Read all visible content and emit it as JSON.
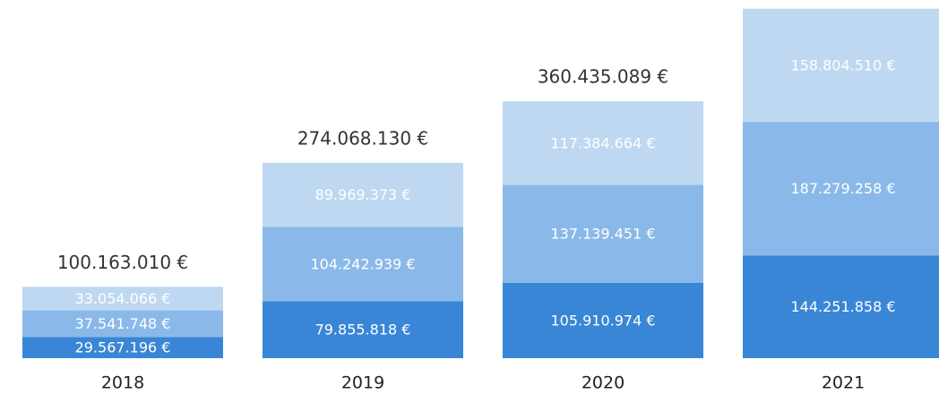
{
  "chart_data": {
    "type": "stacked_bar",
    "categories": [
      "2018",
      "2019",
      "2020",
      "2021"
    ],
    "series": [
      {
        "color": "#3a86d6",
        "values": [
          29567196,
          79855818,
          105910974,
          144251858
        ],
        "value_labels": [
          "29.567.196 €",
          "79.855.818 €",
          "105.910.974 €",
          "144.251.858 €"
        ]
      },
      {
        "color": "#8ab9e9",
        "values": [
          37541748,
          104242939,
          137139451,
          187279258
        ],
        "value_labels": [
          "37.541.748 €",
          "104.242.939 €",
          "137.139.451 €",
          "187.279.258 €"
        ]
      },
      {
        "color": "#bed8f2",
        "values": [
          33054066,
          89969373,
          117384664,
          158804510
        ],
        "value_labels": [
          "33.054.066 €",
          "89.969.373 €",
          "117.384.664 €",
          "158.804.510 €"
        ]
      }
    ],
    "totals": [
      100163010,
      274068130,
      360435089,
      null
    ],
    "total_labels": [
      "100.163.010 €",
      "274.068.130 €",
      "360.435.089 €",
      null
    ],
    "ylim": [
      0,
      500000000
    ]
  }
}
